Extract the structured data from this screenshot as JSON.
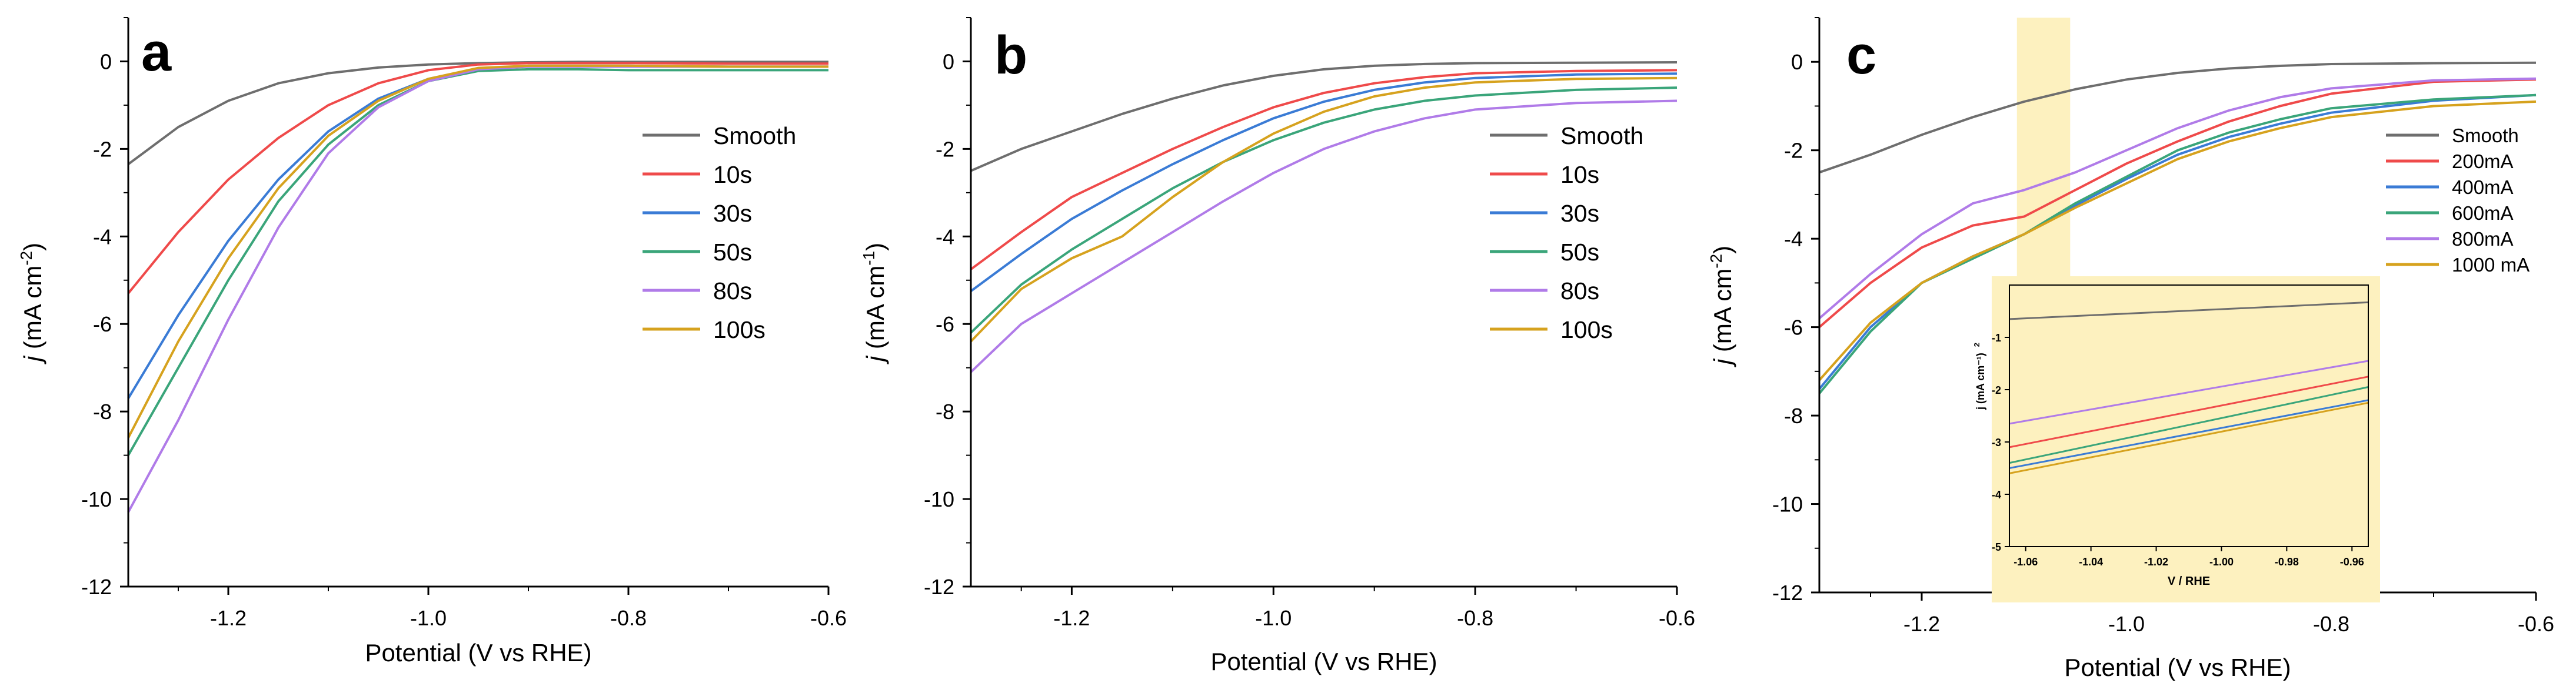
{
  "colors": {
    "smooth": "#6e6e6e",
    "red": "#ef4a4a",
    "blue": "#3a7bd5",
    "green": "#3aa57a",
    "purple": "#b07be8",
    "gold": "#d6a21e",
    "highlight": "#fdf1bf",
    "axis": "#000000"
  },
  "chart_data": [
    {
      "type": "line",
      "panel_label": "a",
      "xlabel": "Potential (V vs RHE)",
      "ylabel_italic": "j",
      "ylabel_rest": " (mA cm",
      "ylabel_sup": "-2",
      "ylabel_end": ")",
      "xlim": [
        -1.3,
        -0.6
      ],
      "ylim": [
        -12,
        1
      ],
      "xticks": [
        -1.2,
        -1.0,
        -0.8,
        -0.6
      ],
      "xtick_labels": [
        "-1.2",
        "-1.0",
        "-0.8",
        "-0.6"
      ],
      "yticks": [
        0,
        -2,
        -4,
        -6,
        -8,
        -10,
        -12
      ],
      "ytick_labels": [
        "0",
        "-2",
        "-4",
        "-6",
        "-8",
        "-10",
        "-12"
      ],
      "legend_position": "right",
      "series": [
        {
          "name": "Smooth",
          "color_key": "smooth",
          "x": [
            -1.3,
            -1.25,
            -1.2,
            -1.15,
            -1.1,
            -1.05,
            -1.0,
            -0.95,
            -0.9,
            -0.85,
            -0.8,
            -0.7,
            -0.6
          ],
          "y": [
            -2.35,
            -1.5,
            -0.9,
            -0.5,
            -0.27,
            -0.14,
            -0.07,
            -0.04,
            -0.02,
            -0.01,
            -0.01,
            -0.01,
            -0.01
          ]
        },
        {
          "name": "10s",
          "color_key": "red",
          "x": [
            -1.3,
            -1.25,
            -1.2,
            -1.15,
            -1.1,
            -1.05,
            -1.0,
            -0.95,
            -0.9,
            -0.85,
            -0.8,
            -0.7,
            -0.6
          ],
          "y": [
            -5.3,
            -3.9,
            -2.7,
            -1.75,
            -1.0,
            -0.5,
            -0.2,
            -0.07,
            -0.04,
            -0.04,
            -0.04,
            -0.05,
            -0.05
          ]
        },
        {
          "name": "30s",
          "color_key": "blue",
          "x": [
            -1.3,
            -1.25,
            -1.2,
            -1.15,
            -1.1,
            -1.05,
            -1.0,
            -0.95,
            -0.9,
            -0.85,
            -0.8,
            -0.7,
            -0.6
          ],
          "y": [
            -7.7,
            -5.8,
            -4.1,
            -2.7,
            -1.6,
            -0.85,
            -0.4,
            -0.17,
            -0.1,
            -0.1,
            -0.1,
            -0.12,
            -0.12
          ]
        },
        {
          "name": "50s",
          "color_key": "green",
          "x": [
            -1.3,
            -1.25,
            -1.2,
            -1.15,
            -1.1,
            -1.05,
            -1.0,
            -0.95,
            -0.9,
            -0.85,
            -0.8,
            -0.7,
            -0.6
          ],
          "y": [
            -9.0,
            -7.0,
            -5.0,
            -3.2,
            -1.9,
            -1.0,
            -0.45,
            -0.22,
            -0.18,
            -0.18,
            -0.2,
            -0.2,
            -0.2
          ]
        },
        {
          "name": "80s",
          "color_key": "purple",
          "x": [
            -1.3,
            -1.25,
            -1.2,
            -1.15,
            -1.1,
            -1.05,
            -1.0,
            -0.95,
            -0.9,
            -0.85,
            -0.8,
            -0.7,
            -0.6
          ],
          "y": [
            -10.3,
            -8.2,
            -5.9,
            -3.8,
            -2.1,
            -1.05,
            -0.45,
            -0.18,
            -0.12,
            -0.12,
            -0.12,
            -0.12,
            -0.12
          ]
        },
        {
          "name": "100s",
          "color_key": "gold",
          "x": [
            -1.3,
            -1.25,
            -1.2,
            -1.15,
            -1.1,
            -1.05,
            -1.0,
            -0.95,
            -0.9,
            -0.85,
            -0.8,
            -0.7,
            -0.6
          ],
          "y": [
            -8.6,
            -6.4,
            -4.5,
            -2.9,
            -1.7,
            -0.9,
            -0.4,
            -0.15,
            -0.1,
            -0.1,
            -0.1,
            -0.12,
            -0.12
          ]
        }
      ]
    },
    {
      "type": "line",
      "panel_label": "b",
      "xlabel": "Potential (V vs RHE)",
      "ylabel_italic": "j",
      "ylabel_rest": " (mA cm",
      "ylabel_sup": "-1",
      "ylabel_end": ")",
      "xlim": [
        -1.3,
        -0.6
      ],
      "ylim": [
        -12,
        1
      ],
      "xticks": [
        -1.2,
        -1.0,
        -0.8,
        -0.6
      ],
      "xtick_labels": [
        "-1.2",
        "-1.0",
        "-0.8",
        "-0.6"
      ],
      "yticks": [
        0,
        -2,
        -4,
        -6,
        -8,
        -10,
        -12
      ],
      "ytick_labels": [
        "0",
        "-2",
        "-4",
        "-6",
        "-8",
        "-10",
        "-12"
      ],
      "legend_position": "right",
      "series": [
        {
          "name": "Smooth",
          "color_key": "smooth",
          "x": [
            -1.3,
            -1.25,
            -1.2,
            -1.15,
            -1.1,
            -1.05,
            -1.0,
            -0.95,
            -0.9,
            -0.85,
            -0.8,
            -0.7,
            -0.6
          ],
          "y": [
            -2.5,
            -2.0,
            -1.6,
            -1.2,
            -0.85,
            -0.55,
            -0.33,
            -0.18,
            -0.1,
            -0.06,
            -0.04,
            -0.03,
            -0.02
          ]
        },
        {
          "name": "10s",
          "color_key": "red",
          "x": [
            -1.3,
            -1.25,
            -1.2,
            -1.15,
            -1.1,
            -1.05,
            -1.0,
            -0.95,
            -0.9,
            -0.85,
            -0.8,
            -0.7,
            -0.6
          ],
          "y": [
            -4.75,
            -3.9,
            -3.1,
            -2.55,
            -2.0,
            -1.5,
            -1.05,
            -0.72,
            -0.5,
            -0.36,
            -0.27,
            -0.22,
            -0.2
          ]
        },
        {
          "name": "30s",
          "color_key": "blue",
          "x": [
            -1.3,
            -1.25,
            -1.2,
            -1.15,
            -1.1,
            -1.05,
            -1.0,
            -0.95,
            -0.9,
            -0.85,
            -0.8,
            -0.7,
            -0.6
          ],
          "y": [
            -5.25,
            -4.4,
            -3.6,
            -2.95,
            -2.35,
            -1.8,
            -1.3,
            -0.92,
            -0.65,
            -0.48,
            -0.38,
            -0.3,
            -0.28
          ]
        },
        {
          "name": "50s",
          "color_key": "green",
          "x": [
            -1.3,
            -1.25,
            -1.2,
            -1.15,
            -1.1,
            -1.05,
            -1.0,
            -0.95,
            -0.9,
            -0.85,
            -0.8,
            -0.7,
            -0.6
          ],
          "y": [
            -6.2,
            -5.1,
            -4.3,
            -3.6,
            -2.9,
            -2.3,
            -1.8,
            -1.4,
            -1.1,
            -0.9,
            -0.78,
            -0.65,
            -0.6
          ]
        },
        {
          "name": "80s",
          "color_key": "purple",
          "x": [
            -1.3,
            -1.25,
            -1.2,
            -1.15,
            -1.1,
            -1.05,
            -1.0,
            -0.95,
            -0.9,
            -0.85,
            -0.8,
            -0.7,
            -0.6
          ],
          "y": [
            -7.1,
            -6.0,
            -5.3,
            -4.6,
            -3.9,
            -3.2,
            -2.55,
            -2.0,
            -1.6,
            -1.3,
            -1.1,
            -0.95,
            -0.9
          ]
        },
        {
          "name": "100s",
          "color_key": "gold",
          "x": [
            -1.3,
            -1.25,
            -1.2,
            -1.15,
            -1.1,
            -1.05,
            -1.0,
            -0.95,
            -0.9,
            -0.85,
            -0.8,
            -0.7,
            -0.6
          ],
          "y": [
            -6.4,
            -5.2,
            -4.5,
            -4.0,
            -3.1,
            -2.3,
            -1.65,
            -1.15,
            -0.8,
            -0.6,
            -0.48,
            -0.4,
            -0.38
          ]
        }
      ]
    },
    {
      "type": "line",
      "panel_label": "c",
      "xlabel": "Potential (V vs RHE)",
      "ylabel_italic": "j",
      "ylabel_rest": " (mA cm",
      "ylabel_sup": "-2",
      "ylabel_end": ")",
      "xlim": [
        -1.3,
        -0.6
      ],
      "ylim": [
        -12,
        1
      ],
      "xticks": [
        -1.2,
        -1.0,
        -0.8,
        -0.6
      ],
      "xtick_labels": [
        "-1.2",
        "-1.0",
        "-0.8",
        "-0.6"
      ],
      "yticks": [
        0,
        -2,
        -4,
        -6,
        -8,
        -10,
        -12
      ],
      "ytick_labels": [
        "0",
        "-2",
        "-4",
        "-6",
        "-8",
        "-10",
        "-12"
      ],
      "legend_position": "top-right",
      "highlight_range": [
        -1.107,
        -1.055
      ],
      "series": [
        {
          "name": "Smooth",
          "color_key": "smooth",
          "x": [
            -1.3,
            -1.25,
            -1.2,
            -1.15,
            -1.1,
            -1.05,
            -1.0,
            -0.95,
            -0.9,
            -0.85,
            -0.8,
            -0.7,
            -0.6
          ],
          "y": [
            -2.5,
            -2.1,
            -1.65,
            -1.25,
            -0.9,
            -0.62,
            -0.4,
            -0.25,
            -0.15,
            -0.09,
            -0.05,
            -0.03,
            -0.02
          ]
        },
        {
          "name": "200mA",
          "color_key": "red",
          "x": [
            -1.3,
            -1.25,
            -1.2,
            -1.15,
            -1.1,
            -1.05,
            -1.0,
            -0.95,
            -0.9,
            -0.85,
            -0.8,
            -0.7,
            -0.6
          ],
          "y": [
            -6.0,
            -5.0,
            -4.2,
            -3.7,
            -3.5,
            -2.9,
            -2.3,
            -1.8,
            -1.35,
            -1.0,
            -0.72,
            -0.45,
            -0.4
          ]
        },
        {
          "name": "400mA",
          "color_key": "blue",
          "x": [
            -1.3,
            -1.25,
            -1.2,
            -1.15,
            -1.1,
            -1.05,
            -1.0,
            -0.95,
            -0.9,
            -0.85,
            -0.8,
            -0.7,
            -0.6
          ],
          "y": [
            -7.4,
            -6.0,
            -5.0,
            -4.4,
            -3.9,
            -3.25,
            -2.65,
            -2.1,
            -1.7,
            -1.4,
            -1.15,
            -0.88,
            -0.75
          ]
        },
        {
          "name": "600mA",
          "color_key": "green",
          "x": [
            -1.3,
            -1.25,
            -1.2,
            -1.15,
            -1.1,
            -1.05,
            -1.0,
            -0.95,
            -0.9,
            -0.85,
            -0.8,
            -0.7,
            -0.6
          ],
          "y": [
            -7.5,
            -6.1,
            -5.0,
            -4.45,
            -3.9,
            -3.2,
            -2.6,
            -2.0,
            -1.6,
            -1.3,
            -1.05,
            -0.85,
            -0.75
          ]
        },
        {
          "name": "800mA",
          "color_key": "purple",
          "x": [
            -1.3,
            -1.25,
            -1.2,
            -1.15,
            -1.1,
            -1.05,
            -1.0,
            -0.95,
            -0.9,
            -0.85,
            -0.8,
            -0.7,
            -0.6
          ],
          "y": [
            -5.8,
            -4.8,
            -3.9,
            -3.2,
            -2.9,
            -2.5,
            -2.0,
            -1.5,
            -1.1,
            -0.8,
            -0.6,
            -0.42,
            -0.38
          ]
        },
        {
          "name": "1000 mA",
          "color_key": "gold",
          "x": [
            -1.3,
            -1.25,
            -1.2,
            -1.15,
            -1.1,
            -1.05,
            -1.0,
            -0.95,
            -0.9,
            -0.85,
            -0.8,
            -0.7,
            -0.6
          ],
          "y": [
            -7.2,
            -5.9,
            -5.0,
            -4.4,
            -3.9,
            -3.3,
            -2.75,
            -2.2,
            -1.8,
            -1.5,
            -1.25,
            -1.0,
            -0.9
          ]
        }
      ],
      "inset": {
        "xlabel": "V / RHE",
        "ylabel": "j (mA cm⁻¹)",
        "ylabel_sup": "2",
        "xlim": [
          -1.065,
          -0.955
        ],
        "ylim": [
          -5,
          0
        ],
        "xticks": [
          -1.06,
          -1.04,
          -1.02,
          -1.0,
          -0.98,
          -0.96
        ],
        "xtick_labels": [
          "-1.06",
          "-1.04",
          "-1.02",
          "-1.00",
          "-0.98",
          "-0.96"
        ],
        "yticks": [
          -1,
          -2,
          -3,
          -4,
          -5
        ],
        "ytick_labels": [
          "-1",
          "-2",
          "-3",
          "-4",
          "-5"
        ],
        "series": [
          {
            "name": "Smooth",
            "color_key": "smooth",
            "x": [
              -1.065,
              -0.955
            ],
            "y": [
              -0.65,
              -0.33
            ]
          },
          {
            "name": "800mA",
            "color_key": "purple",
            "x": [
              -1.065,
              -0.955
            ],
            "y": [
              -2.65,
              -1.45
            ]
          },
          {
            "name": "200mA",
            "color_key": "red",
            "x": [
              -1.065,
              -0.955
            ],
            "y": [
              -3.1,
              -1.75
            ]
          },
          {
            "name": "600mA",
            "color_key": "green",
            "x": [
              -1.065,
              -0.955
            ],
            "y": [
              -3.4,
              -1.95
            ]
          },
          {
            "name": "400mA",
            "color_key": "blue",
            "x": [
              -1.065,
              -0.955
            ],
            "y": [
              -3.5,
              -2.2
            ]
          },
          {
            "name": "1000 mA",
            "color_key": "gold",
            "x": [
              -1.065,
              -0.955
            ],
            "y": [
              -3.6,
              -2.25
            ]
          }
        ]
      }
    }
  ]
}
